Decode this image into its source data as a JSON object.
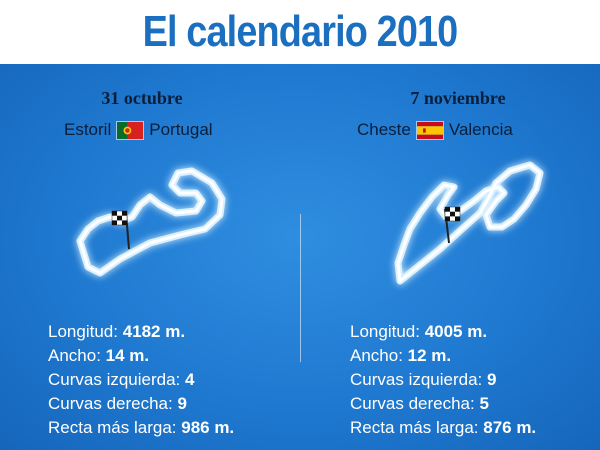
{
  "title": "El calendario 2010",
  "races": [
    {
      "date": "31 octubre",
      "circuit": "Estoril",
      "region": "Portugal",
      "flag_icon": "portugal-flag-icon",
      "stats": [
        {
          "label": "Longitud:",
          "value": "4182 m."
        },
        {
          "label": "Ancho:",
          "value": "14 m."
        },
        {
          "label": "Curvas izquierda:",
          "value": "4"
        },
        {
          "label": "Curvas derecha:",
          "value": "9"
        },
        {
          "label": "Recta más larga:",
          "value": "986 m."
        }
      ]
    },
    {
      "date": "7 noviembre",
      "circuit": "Cheste",
      "region": "Valencia",
      "flag_icon": "spain-flag-icon",
      "stats": [
        {
          "label": "Longitud:",
          "value": "4005 m."
        },
        {
          "label": "Ancho:",
          "value": "12 m."
        },
        {
          "label": "Curvas izquierda:",
          "value": "9"
        },
        {
          "label": "Curvas derecha:",
          "value": "5"
        },
        {
          "label": "Recta más larga:",
          "value": "876 m."
        }
      ]
    }
  ],
  "colors": {
    "title": "#1b6fc0",
    "panel": "#1f79d0",
    "dark_text": "#0b1e3a",
    "light_text": "#ffffff"
  }
}
